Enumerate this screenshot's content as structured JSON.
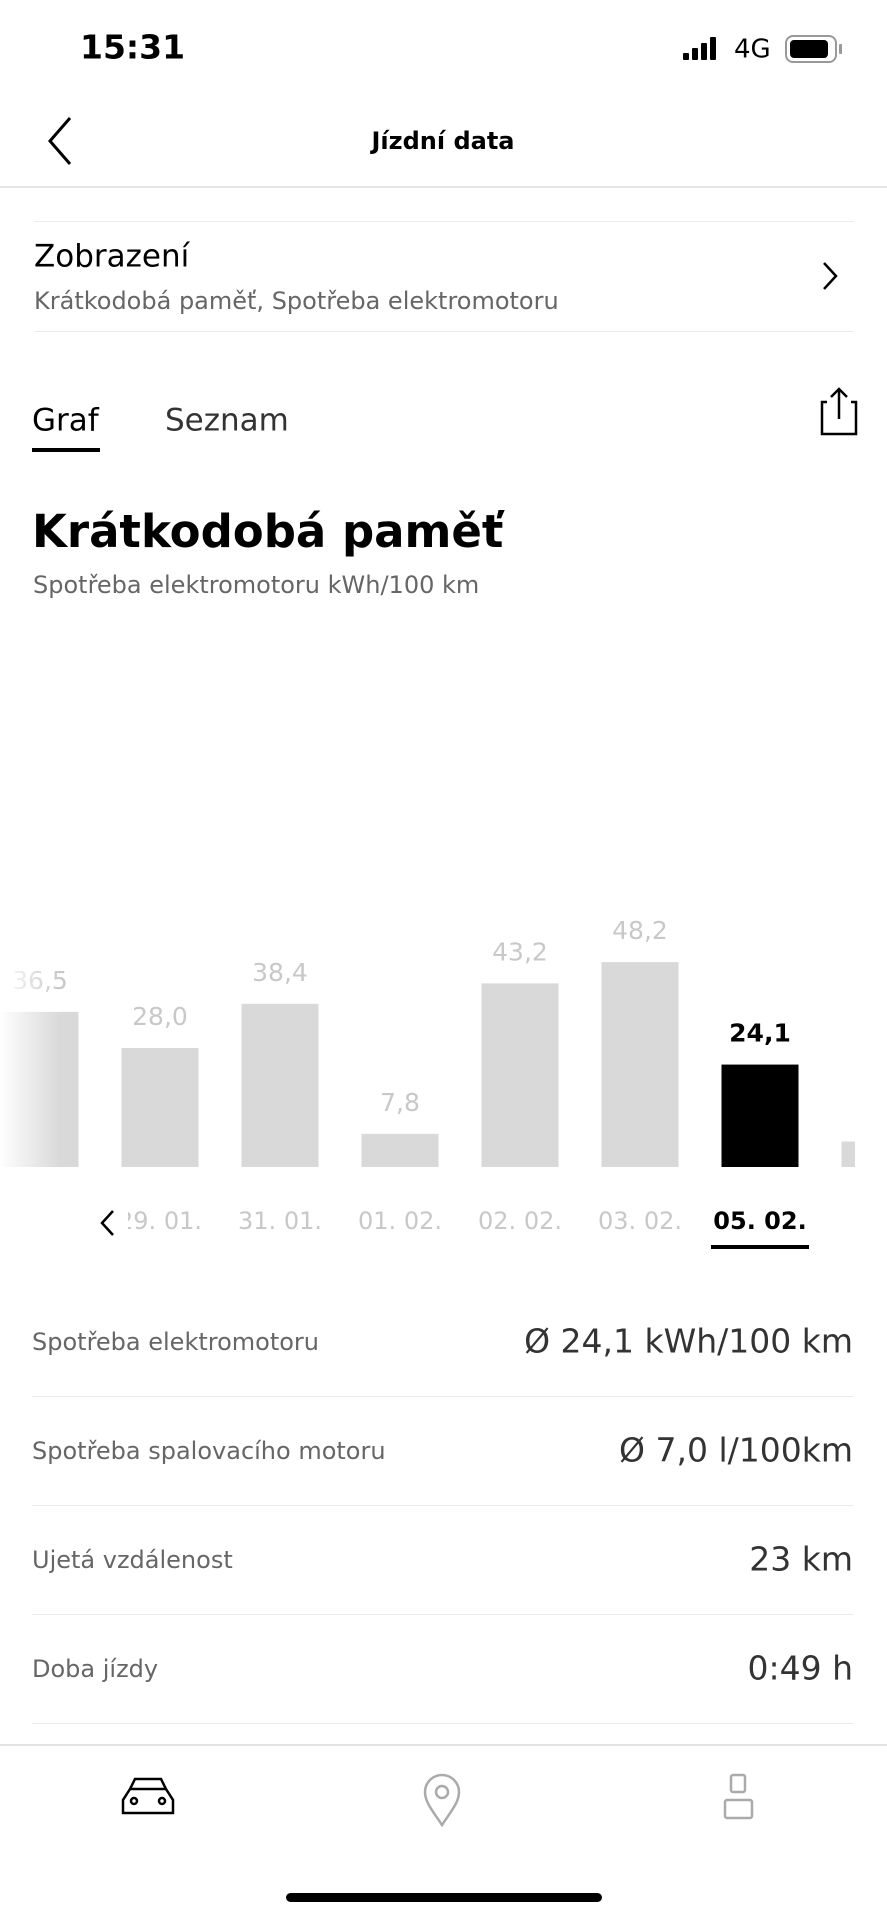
{
  "status": {
    "time": "15:31",
    "network": "4G"
  },
  "header": {
    "title": "Jízdní data"
  },
  "view": {
    "label": "Zobrazení",
    "value": "Krátkodobá paměť, Spotřeba elektromotoru"
  },
  "tabs": [
    "Graf",
    "Seznam"
  ],
  "chart_data": {
    "type": "bar",
    "title": "Krátkodobá paměť",
    "subtitle": "Spotřeba elektromotoru kWh/100 km",
    "categories": [
      null,
      "29. 01.",
      "31. 01.",
      "01. 02.",
      "02. 02.",
      "03. 02.",
      "05. 02.",
      null
    ],
    "values": [
      36.5,
      28.0,
      38.4,
      7.8,
      43.2,
      48.2,
      24.1,
      6
    ],
    "value_labels": [
      "36,5",
      "28,0",
      "38,4",
      "7,8",
      "43,2",
      "48,2",
      "24,1",
      null
    ],
    "color": "#d9d9d9",
    "highlight_color": "#000000",
    "highlight_index": 6,
    "ylim": [
      0,
      50
    ]
  },
  "stats": [
    {
      "label": "Spotřeba elektromotoru",
      "value": "Ø 24,1 kWh/100 km"
    },
    {
      "label": "Spotřeba spalovacího motoru",
      "value": "Ø 7,0 l/100km"
    },
    {
      "label": "Ujetá vzdálenost",
      "value": "23 km"
    },
    {
      "label": "Doba jízdy",
      "value": "0:49 h"
    }
  ]
}
